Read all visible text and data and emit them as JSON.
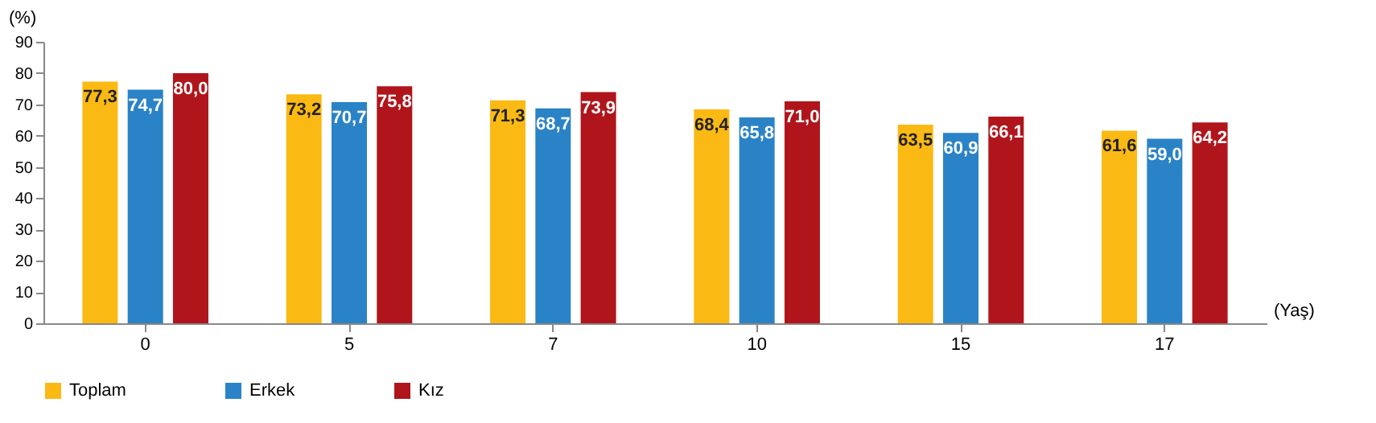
{
  "chart_data": {
    "type": "bar",
    "xlabel": "(Yaş)",
    "ylabel": "(%)",
    "categories": [
      "0",
      "5",
      "7",
      "10",
      "15",
      "17"
    ],
    "series": [
      {
        "name": "Toplam",
        "color": "#fbb914",
        "values": [
          77.3,
          73.2,
          71.3,
          68.4,
          63.5,
          61.6
        ],
        "value_labels": [
          "77,3",
          "73,2",
          "71,3",
          "68,4",
          "63,5",
          "61,6"
        ]
      },
      {
        "name": "Erkek",
        "color": "#2a83c6",
        "values": [
          74.7,
          70.7,
          68.7,
          65.8,
          60.9,
          59.0
        ],
        "value_labels": [
          "74,7",
          "70,7",
          "68,7",
          "65,8",
          "60,9",
          "59,0"
        ]
      },
      {
        "name": "Kız",
        "color": "#b0151c",
        "values": [
          80.0,
          75.8,
          73.9,
          71.0,
          66.1,
          64.2
        ],
        "value_labels": [
          "80,0",
          "75,8",
          "73,9",
          "71,0",
          "66,1",
          "64,2"
        ]
      }
    ],
    "ylim": [
      0,
      90
    ],
    "yticks": [
      0,
      10,
      20,
      30,
      40,
      50,
      60,
      70,
      80,
      90
    ],
    "grid": false,
    "legend": "bottom"
  }
}
